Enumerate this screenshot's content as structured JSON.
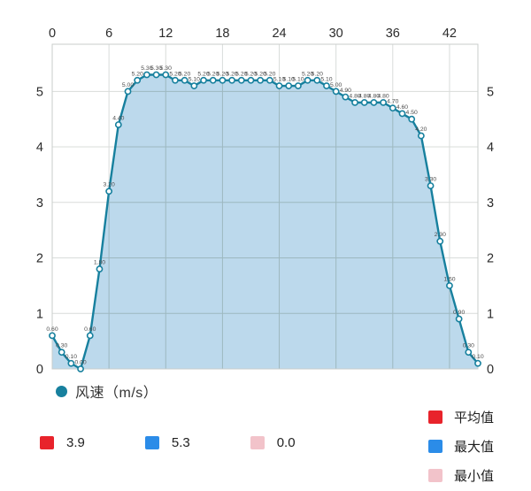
{
  "chart_data": {
    "type": "area",
    "title": "",
    "series": [
      {
        "name": "风速",
        "values": [
          0.6,
          0.3,
          0.1,
          0.0,
          0.6,
          1.8,
          3.2,
          4.4,
          5.0,
          5.2,
          5.3,
          5.3,
          5.3,
          5.2,
          5.2,
          5.1,
          5.2,
          5.2,
          5.2,
          5.2,
          5.2,
          5.2,
          5.2,
          5.2,
          5.1,
          5.1,
          5.1,
          5.2,
          5.2,
          5.1,
          5.0,
          4.9,
          4.8,
          4.8,
          4.8,
          4.8,
          4.7,
          4.6,
          4.5,
          4.2,
          3.3,
          2.3,
          1.5,
          0.9,
          0.3,
          0.1
        ]
      }
    ],
    "legend": {
      "series_label": "风速（m/s）"
    },
    "x_ticks": [
      0,
      6,
      12,
      18,
      24,
      30,
      36,
      42
    ],
    "x_max": 45,
    "y_ticks": [
      0,
      1,
      2,
      3,
      4,
      5
    ],
    "ylim": [
      0,
      5.85
    ],
    "point_label_decimals": 2,
    "grid": true,
    "legend_position": "bottom",
    "colors": {
      "line": "#17809E",
      "area_fill": "#BCD9EC",
      "marker_fill": "#FFFFFF",
      "grid_outer": "#D9DCDA",
      "grid_inner": "#7F9894",
      "border": "#C9CDCB",
      "axis_text": "#2B2B2B",
      "point_label": "#4D4D4D",
      "average": "#E8232B",
      "max": "#2B8CE8",
      "min": "#F2C3CA"
    },
    "stats_row": [
      {
        "name": "average",
        "value": "3.9"
      },
      {
        "name": "max",
        "value": "5.3"
      },
      {
        "name": "min",
        "value": "0.0"
      }
    ],
    "stats_legend": [
      {
        "name": "average",
        "label": "平均值"
      },
      {
        "name": "max",
        "label": "最大值"
      },
      {
        "name": "min",
        "label": "最小值"
      }
    ]
  }
}
